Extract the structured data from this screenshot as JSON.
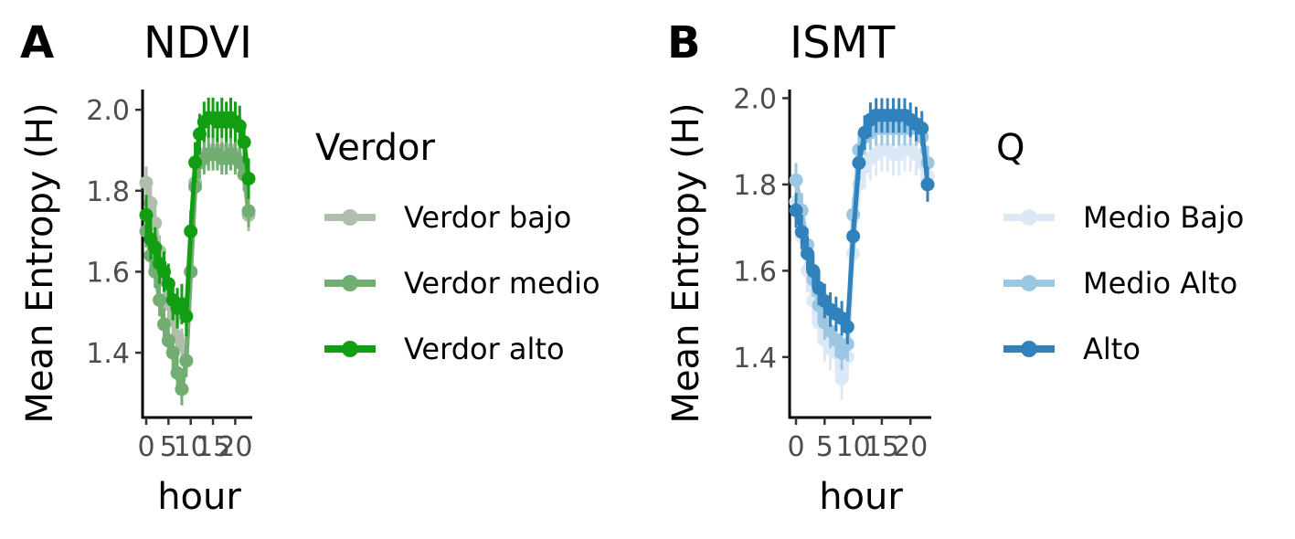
{
  "chart_data": [
    {
      "panel": "A",
      "type": "line",
      "title": "NDVI",
      "xlabel": "hour",
      "ylabel": "Mean Entropy (H)",
      "xlim": [
        0,
        23
      ],
      "ylim": [
        1.24,
        2.05
      ],
      "xticks": [
        0,
        5,
        10,
        15,
        20
      ],
      "xtick_labels": [
        "0",
        "5",
        "10",
        "15",
        "20"
      ],
      "yticks": [
        1.4,
        1.6,
        1.8,
        2.0
      ],
      "ytick_labels": [
        "1.4",
        "1.6",
        "1.8",
        "2.0"
      ],
      "legend_title": "Verdor",
      "legend_position": "right",
      "grid": false,
      "x": [
        0,
        1,
        2,
        3,
        4,
        5,
        6,
        7,
        8,
        9,
        10,
        11,
        12,
        13,
        14,
        15,
        16,
        17,
        18,
        19,
        20,
        21,
        22,
        23
      ],
      "series": [
        {
          "name": "Verdor bajo",
          "color": "#b0bfab",
          "values": [
            1.82,
            1.77,
            1.72,
            1.65,
            1.58,
            1.52,
            1.48,
            1.44,
            1.42,
            1.38,
            1.6,
            1.82,
            1.87,
            1.89,
            1.89,
            1.9,
            1.9,
            1.89,
            1.9,
            1.9,
            1.89,
            1.87,
            1.84,
            1.74
          ],
          "err": 0.04
        },
        {
          "name": "Verdor medio",
          "color": "#72ad72",
          "values": [
            1.7,
            1.64,
            1.6,
            1.53,
            1.47,
            1.43,
            1.4,
            1.35,
            1.31,
            1.38,
            1.6,
            1.81,
            1.87,
            1.88,
            1.89,
            1.89,
            1.89,
            1.88,
            1.88,
            1.89,
            1.88,
            1.87,
            1.84,
            1.75
          ],
          "err": 0.04
        },
        {
          "name": "Verdor alto",
          "color": "#129e12",
          "values": [
            1.74,
            1.68,
            1.66,
            1.62,
            1.6,
            1.57,
            1.53,
            1.51,
            1.52,
            1.49,
            1.7,
            1.87,
            1.94,
            1.97,
            1.98,
            1.98,
            1.97,
            1.98,
            1.97,
            1.98,
            1.97,
            1.96,
            1.92,
            1.83
          ],
          "err": 0.05
        }
      ]
    },
    {
      "panel": "B",
      "type": "line",
      "title": "ISMT",
      "xlabel": "hour",
      "ylabel": "Mean Entropy (H)",
      "xlim": [
        0,
        23
      ],
      "ylim": [
        1.26,
        2.02
      ],
      "xticks": [
        0,
        5,
        10,
        15,
        20
      ],
      "xtick_labels": [
        "0",
        "5",
        "10",
        "15",
        "20"
      ],
      "yticks": [
        1.4,
        1.6,
        1.8,
        2.0
      ],
      "ytick_labels": [
        "1.4",
        "1.6",
        "1.8",
        "2.0"
      ],
      "legend_title": "Q",
      "legend_position": "right",
      "grid": false,
      "x": [
        0,
        1,
        2,
        3,
        4,
        5,
        6,
        7,
        8,
        9,
        10,
        11,
        12,
        13,
        14,
        15,
        16,
        17,
        18,
        19,
        20,
        21,
        22,
        23
      ],
      "series": [
        {
          "name": "Medio Bajo",
          "color": "#dbe8f5",
          "values": [
            1.76,
            1.68,
            1.6,
            1.53,
            1.48,
            1.44,
            1.42,
            1.41,
            1.35,
            1.4,
            1.64,
            1.8,
            1.84,
            1.86,
            1.87,
            1.88,
            1.88,
            1.87,
            1.87,
            1.88,
            1.88,
            1.87,
            1.85,
            1.82
          ],
          "err": 0.05
        },
        {
          "name": "Medio Alto",
          "color": "#9cc7e2",
          "values": [
            1.81,
            1.74,
            1.66,
            1.58,
            1.52,
            1.48,
            1.46,
            1.44,
            1.41,
            1.43,
            1.73,
            1.88,
            1.91,
            1.92,
            1.93,
            1.93,
            1.93,
            1.93,
            1.93,
            1.93,
            1.93,
            1.93,
            1.91,
            1.85
          ],
          "err": 0.04
        },
        {
          "name": "Alto",
          "color": "#3181bd",
          "values": [
            1.74,
            1.69,
            1.64,
            1.6,
            1.56,
            1.53,
            1.51,
            1.5,
            1.49,
            1.47,
            1.68,
            1.85,
            1.92,
            1.95,
            1.96,
            1.96,
            1.96,
            1.96,
            1.96,
            1.96,
            1.95,
            1.94,
            1.93,
            1.8
          ],
          "err": 0.04
        }
      ]
    }
  ],
  "panels": [
    {
      "letter": "A",
      "title": "NDVI"
    },
    {
      "letter": "B",
      "title": "ISMT"
    }
  ]
}
